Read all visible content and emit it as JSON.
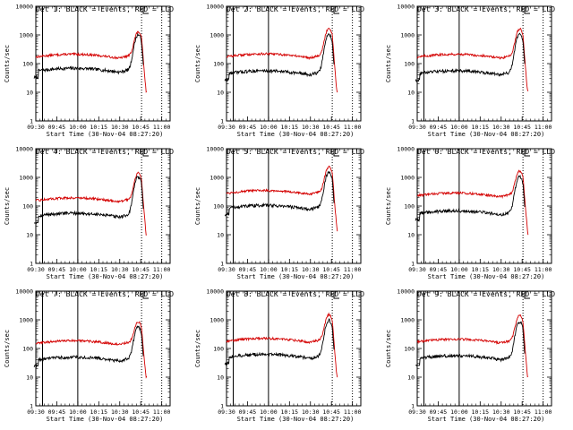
{
  "chart_data": [
    {
      "type": "line",
      "title": "Det 1: BLACK = Events, RED = LLD",
      "xlabel": "Start Time (30-Nov-04 08:27:20)",
      "ylabel": "Counts/sec",
      "yscale": "log",
      "ylim": [
        1,
        10000
      ],
      "xticks": [
        "09:30",
        "09:45",
        "10:00",
        "10:15",
        "10:30",
        "10:45",
        "11:00"
      ],
      "yticks": [
        "1",
        "10",
        "100",
        "1000",
        "10000"
      ],
      "events": {
        "base": 55,
        "peak": 950,
        "start_hour": 9.48
      },
      "lld": {
        "base": 170,
        "peak": 1050
      },
      "markers": {
        "solid": [
          9.5,
          9.58,
          10.0
        ],
        "dotted": [
          10.76,
          11.0
        ]
      }
    },
    {
      "type": "line",
      "title": "Det 2: BLACK = Events, RED = LLD",
      "xlabel": "Start Time (30-Nov-04 08:27:20)",
      "ylabel": "Counts/sec",
      "yscale": "log",
      "ylim": [
        1,
        10000
      ],
      "xticks": [
        "09:30",
        "09:45",
        "10:00",
        "10:15",
        "10:30",
        "10:45",
        "11:00"
      ],
      "yticks": [
        "1",
        "10",
        "100",
        "1000",
        "10000"
      ],
      "events": {
        "base": 45,
        "peak": 1000,
        "start_hour": 9.48
      },
      "lld": {
        "base": 175,
        "peak": 1500
      },
      "markers": {
        "solid": [
          9.5,
          9.58,
          10.0
        ],
        "dotted": [
          10.76,
          11.0
        ]
      }
    },
    {
      "type": "line",
      "title": "Det 3: BLACK = Events, RED = LLD",
      "xlabel": "Start Time (30-Nov-04 08:27:20)",
      "ylabel": "Counts/sec",
      "yscale": "log",
      "ylim": [
        1,
        10000
      ],
      "xticks": [
        "09:30",
        "09:45",
        "10:00",
        "10:15",
        "10:30",
        "10:45",
        "11:00"
      ],
      "yticks": [
        "1",
        "10",
        "100",
        "1000",
        "10000"
      ],
      "events": {
        "base": 45,
        "peak": 1000,
        "start_hour": 9.48
      },
      "lld": {
        "base": 170,
        "peak": 1400
      },
      "markers": {
        "solid": [
          9.5,
          9.58,
          10.0
        ],
        "dotted": [
          10.76,
          11.0
        ]
      }
    },
    {
      "type": "line",
      "title": "Det 4: BLACK = Events, RED = LLD",
      "xlabel": "Start Time (30-Nov-04 08:27:20)",
      "ylabel": "Counts/sec",
      "yscale": "log",
      "ylim": [
        1,
        10000
      ],
      "xticks": [
        "09:30",
        "09:45",
        "10:00",
        "10:15",
        "10:30",
        "10:45",
        "11:00"
      ],
      "yticks": [
        "1",
        "10",
        "100",
        "1000",
        "10000"
      ],
      "events": {
        "base": 45,
        "peak": 1000,
        "start_hour": 9.48
      },
      "lld": {
        "base": 155,
        "peak": 1200
      },
      "markers": {
        "solid": [
          9.5,
          9.58,
          10.0
        ],
        "dotted": [
          10.76,
          11.0
        ]
      }
    },
    {
      "type": "line",
      "title": "Det 5: BLACK = Events, RED = LLD",
      "xlabel": "Start Time (30-Nov-04 08:27:20)",
      "ylabel": "Counts/sec",
      "yscale": "log",
      "ylim": [
        1,
        10000
      ],
      "xticks": [
        "09:30",
        "09:45",
        "10:00",
        "10:15",
        "10:30",
        "10:45",
        "11:00"
      ],
      "yticks": [
        "1",
        "10",
        "100",
        "1000",
        "10000"
      ],
      "events": {
        "base": 85,
        "peak": 1400,
        "start_hour": 9.48
      },
      "lld": {
        "base": 280,
        "peak": 2000
      },
      "markers": {
        "solid": [
          9.5,
          9.58,
          10.0
        ],
        "dotted": [
          10.76,
          11.0
        ]
      }
    },
    {
      "type": "line",
      "title": "Det 6: BLACK = Events, RED = LLD",
      "xlabel": "Start Time (30-Nov-04 08:27:20)",
      "ylabel": "Counts/sec",
      "yscale": "log",
      "ylim": [
        1,
        10000
      ],
      "xticks": [
        "09:30",
        "09:45",
        "10:00",
        "10:15",
        "10:30",
        "10:45",
        "11:00"
      ],
      "yticks": [
        "1",
        "10",
        "100",
        "1000",
        "10000"
      ],
      "events": {
        "base": 55,
        "peak": 1000,
        "start_hour": 9.48
      },
      "lld": {
        "base": 230,
        "peak": 1400
      },
      "markers": {
        "solid": [
          9.5,
          9.58,
          10.0
        ],
        "dotted": [
          10.76,
          11.0
        ]
      }
    },
    {
      "type": "line",
      "title": "Det 7: BLACK = Events, RED = LLD",
      "xlabel": "Start Time (30-Nov-04 08:27:20)",
      "ylabel": "Counts/sec",
      "yscale": "log",
      "ylim": [
        1,
        10000
      ],
      "xticks": [
        "09:30",
        "09:45",
        "10:00",
        "10:15",
        "10:30",
        "10:45",
        "11:00"
      ],
      "yticks": [
        "1",
        "10",
        "100",
        "1000",
        "10000"
      ],
      "events": {
        "base": 40,
        "peak": 500,
        "start_hour": 9.48
      },
      "lld": {
        "base": 150,
        "peak": 650
      },
      "markers": {
        "solid": [
          9.5,
          9.58,
          10.0
        ],
        "dotted": [
          10.76,
          11.0
        ]
      }
    },
    {
      "type": "line",
      "title": "Det 8: BLACK = Events, RED = LLD",
      "xlabel": "Start Time (30-Nov-04 08:27:20)",
      "ylabel": "Counts/sec",
      "yscale": "log",
      "ylim": [
        1,
        10000
      ],
      "xticks": [
        "09:30",
        "09:45",
        "10:00",
        "10:15",
        "10:30",
        "10:45",
        "11:00"
      ],
      "yticks": [
        "1",
        "10",
        "100",
        "1000",
        "10000"
      ],
      "events": {
        "base": 50,
        "peak": 900,
        "start_hour": 9.48
      },
      "lld": {
        "base": 180,
        "peak": 1300
      },
      "markers": {
        "solid": [
          9.5,
          9.58,
          10.0
        ],
        "dotted": [
          10.76,
          11.0
        ]
      }
    },
    {
      "type": "line",
      "title": "Det 9: BLACK = Events, RED = LLD",
      "xlabel": "Start Time (30-Nov-04 08:27:20)",
      "ylabel": "Counts/sec",
      "yscale": "log",
      "ylim": [
        1,
        10000
      ],
      "xticks": [
        "09:30",
        "09:45",
        "10:00",
        "10:15",
        "10:30",
        "10:45",
        "11:00"
      ],
      "yticks": [
        "1",
        "10",
        "100",
        "1000",
        "10000"
      ],
      "events": {
        "base": 45,
        "peak": 800,
        "start_hour": 9.48
      },
      "lld": {
        "base": 170,
        "peak": 1200
      },
      "markers": {
        "solid": [
          9.5,
          9.58,
          10.0
        ],
        "dotted": [
          10.76,
          11.0
        ]
      }
    }
  ]
}
